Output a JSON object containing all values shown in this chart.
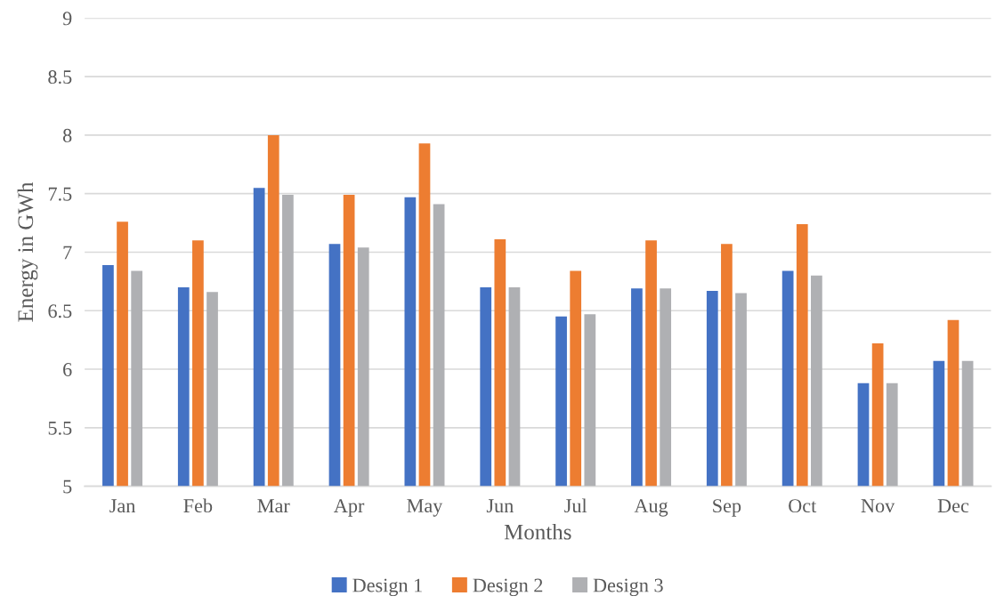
{
  "chart_data": {
    "type": "bar",
    "xlabel": "Months",
    "ylabel": "Energy in GWh",
    "categories": [
      "Jan",
      "Feb",
      "Mar",
      "Apr",
      "May",
      "Jun",
      "Jul",
      "Aug",
      "Sep",
      "Oct",
      "Nov",
      "Dec"
    ],
    "series": [
      {
        "name": "Design 1",
        "color": "#4472c4",
        "values": [
          6.89,
          6.7,
          7.55,
          7.07,
          7.47,
          6.7,
          6.45,
          6.69,
          6.67,
          6.84,
          5.88,
          6.07
        ]
      },
      {
        "name": "Design 2",
        "color": "#ed7d31",
        "values": [
          7.26,
          7.1,
          8.0,
          7.49,
          7.93,
          7.11,
          6.84,
          7.1,
          7.07,
          7.24,
          6.22,
          6.42
        ]
      },
      {
        "name": "Design 3",
        "color": "#afb0b3",
        "values": [
          6.84,
          6.66,
          7.49,
          7.04,
          7.41,
          6.7,
          6.47,
          6.69,
          6.65,
          6.8,
          5.88,
          6.07
        ]
      }
    ],
    "ylim": [
      5,
      9
    ],
    "yticks": [
      5,
      5.5,
      6,
      6.5,
      7,
      7.5,
      8,
      8.5,
      9
    ],
    "grid": "y",
    "legend": "bottom"
  }
}
